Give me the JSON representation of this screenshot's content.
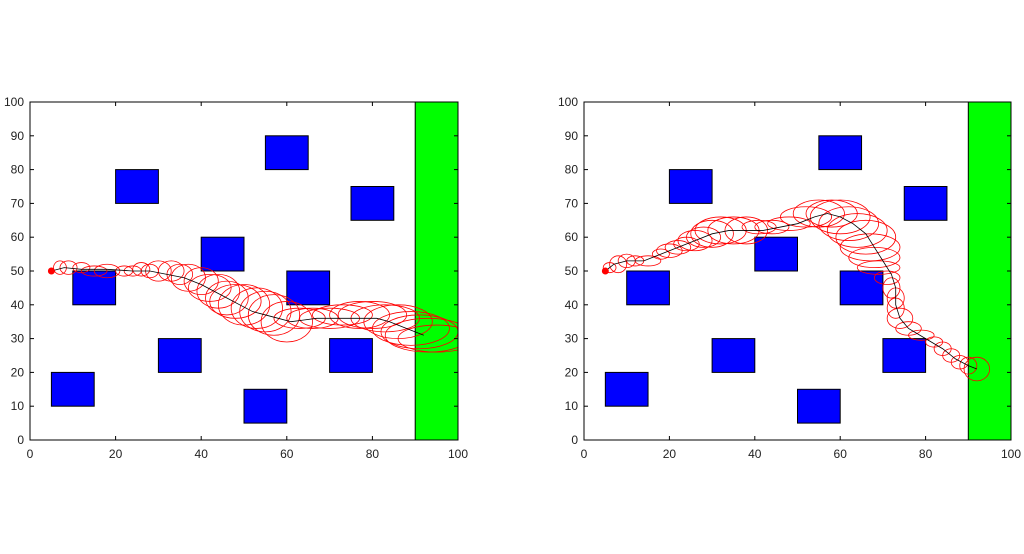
{
  "chart_data": [
    {
      "type": "scatter",
      "title": "",
      "xlabel": "",
      "ylabel": "",
      "xlim": [
        0,
        100
      ],
      "ylim": [
        0,
        100
      ],
      "xticks": [
        0,
        20,
        40,
        60,
        80,
        100
      ],
      "yticks": [
        0,
        10,
        20,
        30,
        40,
        50,
        60,
        70,
        80,
        90,
        100
      ],
      "grid": false,
      "colors": {
        "obstacle": "#0000ff",
        "goal": "#00ff00",
        "ellipse": "#ff0000",
        "path": "#000000",
        "start": "#ff0000"
      },
      "goal_region": {
        "x": [
          90,
          100
        ],
        "y": [
          0,
          100
        ]
      },
      "obstacles": [
        {
          "x": [
            10,
            20
          ],
          "y": [
            40,
            50
          ]
        },
        {
          "x": [
            5,
            15
          ],
          "y": [
            10,
            20
          ]
        },
        {
          "x": [
            20,
            30
          ],
          "y": [
            70,
            80
          ]
        },
        {
          "x": [
            30,
            40
          ],
          "y": [
            20,
            30
          ]
        },
        {
          "x": [
            40,
            50
          ],
          "y": [
            50,
            60
          ]
        },
        {
          "x": [
            55,
            65
          ],
          "y": [
            80,
            90
          ]
        },
        {
          "x": [
            60,
            70
          ],
          "y": [
            40,
            50
          ]
        },
        {
          "x": [
            50,
            60
          ],
          "y": [
            5,
            15
          ]
        },
        {
          "x": [
            75,
            85
          ],
          "y": [
            65,
            75
          ]
        },
        {
          "x": [
            70,
            80
          ],
          "y": [
            20,
            30
          ]
        }
      ],
      "start": [
        5,
        50
      ],
      "path": [
        [
          5,
          50
        ],
        [
          8,
          51
        ],
        [
          12,
          50.5
        ],
        [
          18,
          50.5
        ],
        [
          24,
          50
        ],
        [
          28,
          50
        ],
        [
          32,
          49
        ],
        [
          36,
          48
        ],
        [
          40,
          46
        ],
        [
          43,
          44
        ],
        [
          46,
          42
        ],
        [
          49,
          40
        ],
        [
          52,
          38
        ],
        [
          55,
          37
        ],
        [
          58,
          36
        ],
        [
          61,
          35
        ],
        [
          64,
          35.5
        ],
        [
          67,
          36
        ],
        [
          70,
          36
        ],
        [
          74,
          36
        ],
        [
          78,
          36
        ],
        [
          81,
          36
        ],
        [
          84,
          35
        ],
        [
          86,
          34
        ],
        [
          88,
          33
        ],
        [
          90,
          32
        ],
        [
          92,
          31
        ]
      ],
      "ellipses": [
        {
          "x": 7,
          "y": 51,
          "rx": 1.5,
          "ry": 2
        },
        {
          "x": 9,
          "y": 51,
          "rx": 2,
          "ry": 2
        },
        {
          "x": 12,
          "y": 51,
          "rx": 2,
          "ry": 1.5
        },
        {
          "x": 15,
          "y": 50,
          "rx": 3,
          "ry": 1.5
        },
        {
          "x": 18,
          "y": 50,
          "rx": 3,
          "ry": 2
        },
        {
          "x": 22,
          "y": 50,
          "rx": 2,
          "ry": 1.5
        },
        {
          "x": 24,
          "y": 50,
          "rx": 2,
          "ry": 1.5
        },
        {
          "x": 26,
          "y": 50.5,
          "rx": 2,
          "ry": 2
        },
        {
          "x": 28,
          "y": 50,
          "rx": 2,
          "ry": 2
        },
        {
          "x": 30,
          "y": 50,
          "rx": 3,
          "ry": 3
        },
        {
          "x": 33,
          "y": 50,
          "rx": 3,
          "ry": 3
        },
        {
          "x": 35,
          "y": 49,
          "rx": 3,
          "ry": 3
        },
        {
          "x": 37,
          "y": 48,
          "rx": 4,
          "ry": 4
        },
        {
          "x": 40,
          "y": 47,
          "rx": 4,
          "ry": 4
        },
        {
          "x": 42,
          "y": 45,
          "rx": 5,
          "ry": 4
        },
        {
          "x": 44,
          "y": 44,
          "rx": 5,
          "ry": 5
        },
        {
          "x": 46,
          "y": 42,
          "rx": 5,
          "ry": 5
        },
        {
          "x": 48,
          "y": 41,
          "rx": 6,
          "ry": 5
        },
        {
          "x": 50,
          "y": 40,
          "rx": 6,
          "ry": 6
        },
        {
          "x": 53,
          "y": 39,
          "rx": 6,
          "ry": 6
        },
        {
          "x": 55,
          "y": 38,
          "rx": 6,
          "ry": 6
        },
        {
          "x": 57,
          "y": 37,
          "rx": 6,
          "ry": 6
        },
        {
          "x": 60,
          "y": 35,
          "rx": 6,
          "ry": 6
        },
        {
          "x": 63,
          "y": 36,
          "rx": 6,
          "ry": 3
        },
        {
          "x": 66,
          "y": 36,
          "rx": 6,
          "ry": 3
        },
        {
          "x": 70,
          "y": 36,
          "rx": 7,
          "ry": 3
        },
        {
          "x": 73,
          "y": 37,
          "rx": 7,
          "ry": 3
        },
        {
          "x": 77,
          "y": 37,
          "rx": 7,
          "ry": 4
        },
        {
          "x": 80,
          "y": 37,
          "rx": 8,
          "ry": 4
        },
        {
          "x": 83,
          "y": 36,
          "rx": 8,
          "ry": 4
        },
        {
          "x": 86,
          "y": 35,
          "rx": 8,
          "ry": 5
        },
        {
          "x": 89,
          "y": 33,
          "rx": 9,
          "ry": 5
        },
        {
          "x": 91,
          "y": 32,
          "rx": 9,
          "ry": 5
        },
        {
          "x": 93,
          "y": 31,
          "rx": 10,
          "ry": 5
        },
        {
          "x": 95,
          "y": 30,
          "rx": 9,
          "ry": 4
        }
      ]
    },
    {
      "type": "scatter",
      "title": "",
      "xlabel": "",
      "ylabel": "",
      "xlim": [
        0,
        100
      ],
      "ylim": [
        0,
        100
      ],
      "xticks": [
        0,
        20,
        40,
        60,
        80,
        100
      ],
      "yticks": [
        0,
        10,
        20,
        30,
        40,
        50,
        60,
        70,
        80,
        90,
        100
      ],
      "grid": false,
      "colors": {
        "obstacle": "#0000ff",
        "goal": "#00ff00",
        "ellipse": "#ff0000",
        "path": "#000000",
        "start": "#ff0000"
      },
      "goal_region": {
        "x": [
          90,
          100
        ],
        "y": [
          0,
          100
        ]
      },
      "obstacles": [
        {
          "x": [
            10,
            20
          ],
          "y": [
            40,
            50
          ]
        },
        {
          "x": [
            5,
            15
          ],
          "y": [
            10,
            20
          ]
        },
        {
          "x": [
            20,
            30
          ],
          "y": [
            70,
            80
          ]
        },
        {
          "x": [
            30,
            40
          ],
          "y": [
            20,
            30
          ]
        },
        {
          "x": [
            40,
            50
          ],
          "y": [
            50,
            60
          ]
        },
        {
          "x": [
            55,
            65
          ],
          "y": [
            80,
            90
          ]
        },
        {
          "x": [
            60,
            70
          ],
          "y": [
            40,
            50
          ]
        },
        {
          "x": [
            50,
            60
          ],
          "y": [
            5,
            15
          ]
        },
        {
          "x": [
            75,
            85
          ],
          "y": [
            65,
            75
          ]
        },
        {
          "x": [
            70,
            80
          ],
          "y": [
            20,
            30
          ]
        }
      ],
      "start": [
        5,
        50
      ],
      "path": [
        [
          5,
          50
        ],
        [
          7,
          52
        ],
        [
          10,
          53
        ],
        [
          14,
          53
        ],
        [
          18,
          55
        ],
        [
          22,
          57
        ],
        [
          26,
          59
        ],
        [
          30,
          61
        ],
        [
          34,
          62
        ],
        [
          38,
          62
        ],
        [
          42,
          62
        ],
        [
          46,
          63
        ],
        [
          50,
          64
        ],
        [
          54,
          66
        ],
        [
          57,
          67
        ],
        [
          60,
          66
        ],
        [
          63,
          64
        ],
        [
          66,
          61
        ],
        [
          68,
          57
        ],
        [
          70,
          53
        ],
        [
          72,
          49
        ],
        [
          73,
          45
        ],
        [
          73,
          40
        ],
        [
          74,
          36
        ],
        [
          76,
          33
        ],
        [
          80,
          30
        ],
        [
          84,
          27
        ],
        [
          87,
          24
        ],
        [
          90,
          22
        ],
        [
          92,
          21
        ]
      ],
      "ellipses": [
        {
          "x": 6,
          "y": 51,
          "rx": 1.5,
          "ry": 1.5
        },
        {
          "x": 8,
          "y": 52,
          "rx": 2,
          "ry": 2.5
        },
        {
          "x": 10,
          "y": 53,
          "rx": 2,
          "ry": 2
        },
        {
          "x": 12,
          "y": 53,
          "rx": 2,
          "ry": 1.5
        },
        {
          "x": 15,
          "y": 53,
          "rx": 3,
          "ry": 1.5
        },
        {
          "x": 18,
          "y": 55,
          "rx": 2,
          "ry": 1.5
        },
        {
          "x": 20,
          "y": 56,
          "rx": 3,
          "ry": 2
        },
        {
          "x": 22,
          "y": 57,
          "rx": 3,
          "ry": 2
        },
        {
          "x": 24,
          "y": 58,
          "rx": 3,
          "ry": 2
        },
        {
          "x": 26,
          "y": 59,
          "rx": 4,
          "ry": 3
        },
        {
          "x": 28,
          "y": 60,
          "rx": 4,
          "ry": 3
        },
        {
          "x": 30,
          "y": 61,
          "rx": 5,
          "ry": 4
        },
        {
          "x": 32,
          "y": 62,
          "rx": 6,
          "ry": 4
        },
        {
          "x": 35,
          "y": 62,
          "rx": 6,
          "ry": 4
        },
        {
          "x": 38,
          "y": 62,
          "rx": 5,
          "ry": 4
        },
        {
          "x": 41,
          "y": 63,
          "rx": 4,
          "ry": 2
        },
        {
          "x": 44,
          "y": 63,
          "rx": 4,
          "ry": 2
        },
        {
          "x": 48,
          "y": 64,
          "rx": 5,
          "ry": 2
        },
        {
          "x": 52,
          "y": 66,
          "rx": 6,
          "ry": 3
        },
        {
          "x": 55,
          "y": 67,
          "rx": 6,
          "ry": 4
        },
        {
          "x": 58,
          "y": 67,
          "rx": 6,
          "ry": 4
        },
        {
          "x": 60,
          "y": 66,
          "rx": 7,
          "ry": 5
        },
        {
          "x": 62,
          "y": 64,
          "rx": 7,
          "ry": 5
        },
        {
          "x": 64,
          "y": 62,
          "rx": 7,
          "ry": 5
        },
        {
          "x": 66,
          "y": 60,
          "rx": 7,
          "ry": 5
        },
        {
          "x": 67,
          "y": 57,
          "rx": 7,
          "ry": 4
        },
        {
          "x": 68,
          "y": 54,
          "rx": 6,
          "ry": 3
        },
        {
          "x": 69,
          "y": 51,
          "rx": 5,
          "ry": 2
        },
        {
          "x": 71,
          "y": 48,
          "rx": 3,
          "ry": 2
        },
        {
          "x": 72,
          "y": 45,
          "rx": 2,
          "ry": 3
        },
        {
          "x": 73,
          "y": 42,
          "rx": 2,
          "ry": 3
        },
        {
          "x": 73,
          "y": 39,
          "rx": 2,
          "ry": 3
        },
        {
          "x": 74,
          "y": 36,
          "rx": 3,
          "ry": 3
        },
        {
          "x": 76,
          "y": 33,
          "rx": 3,
          "ry": 2
        },
        {
          "x": 79,
          "y": 31,
          "rx": 3,
          "ry": 1.5
        },
        {
          "x": 82,
          "y": 29,
          "rx": 2,
          "ry": 1.5
        },
        {
          "x": 84,
          "y": 27,
          "rx": 2,
          "ry": 2
        },
        {
          "x": 86,
          "y": 25,
          "rx": 2,
          "ry": 2
        },
        {
          "x": 88,
          "y": 23,
          "rx": 2,
          "ry": 2
        },
        {
          "x": 90,
          "y": 22,
          "rx": 2,
          "ry": 2.5
        },
        {
          "x": 92,
          "y": 21,
          "rx": 3,
          "ry": 3.5
        }
      ]
    }
  ]
}
